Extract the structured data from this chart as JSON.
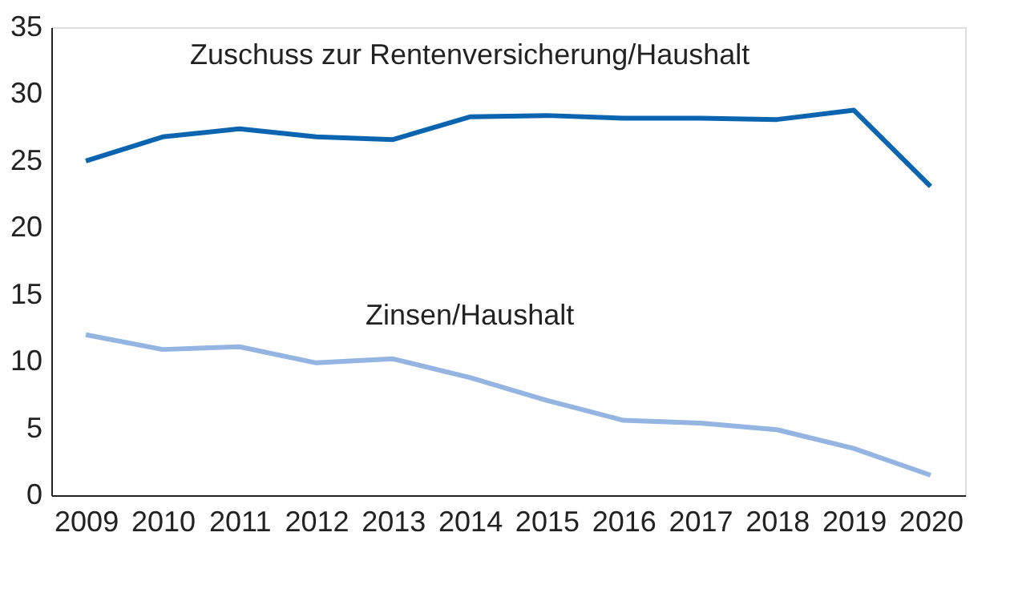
{
  "chart_data": {
    "type": "line",
    "categories": [
      "2009",
      "2010",
      "2011",
      "2012",
      "2013",
      "2014",
      "2015",
      "2016",
      "2017",
      "2018",
      "2019",
      "2020"
    ],
    "series": [
      {
        "name": "Zuschuss zur Rentenversicherung/Haushalt",
        "color": "#0a64b0",
        "values": [
          25.0,
          26.8,
          27.4,
          26.8,
          26.6,
          28.3,
          28.4,
          28.2,
          28.2,
          28.1,
          28.8,
          23.1
        ]
      },
      {
        "name": "Zinsen/Haushalt",
        "color": "#94b4e2",
        "values": [
          12.0,
          10.9,
          11.1,
          9.9,
          10.2,
          8.8,
          7.1,
          5.6,
          5.4,
          4.9,
          3.5,
          1.5
        ]
      }
    ],
    "ylim": [
      0,
      35
    ],
    "yticks": [
      0,
      5,
      10,
      15,
      20,
      25,
      30,
      35
    ],
    "grid": false,
    "legend": false,
    "marker": "none",
    "line_style": "solid"
  }
}
